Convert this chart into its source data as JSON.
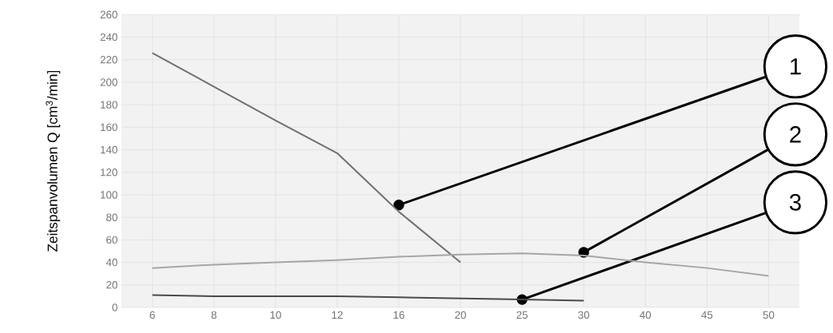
{
  "chart_data": {
    "type": "line",
    "ylabel": "Zeitspanvolumen Q [cm$^{3}$/min]",
    "categories": [
      "6",
      "8",
      "10",
      "12",
      "16",
      "20",
      "25",
      "30",
      "40",
      "45",
      "50"
    ],
    "series": [
      {
        "color": "#707070",
        "values": [
          226,
          196,
          166,
          137,
          85,
          40,
          null,
          null,
          null,
          null,
          null
        ]
      },
      {
        "color": "#a6a6a6",
        "values": [
          35,
          38,
          40,
          42,
          45,
          47,
          48,
          46,
          40,
          35,
          28
        ]
      },
      {
        "color": "#4a4a4a",
        "values": [
          11,
          10,
          10,
          10,
          9,
          8,
          7,
          6,
          null,
          null,
          null
        ]
      }
    ],
    "ylim": [
      0,
      260
    ],
    "yticks": [
      0,
      20,
      40,
      60,
      80,
      100,
      120,
      140,
      160,
      180,
      200,
      220,
      240,
      260
    ],
    "grid": true,
    "marker": "none",
    "line_style": "solid",
    "annotations": [
      {
        "text": "1",
        "x": "16",
        "y": 91
      },
      {
        "text": "2",
        "x": "30",
        "y": 49
      },
      {
        "text": "3",
        "x": "25",
        "y": 7
      }
    ]
  }
}
